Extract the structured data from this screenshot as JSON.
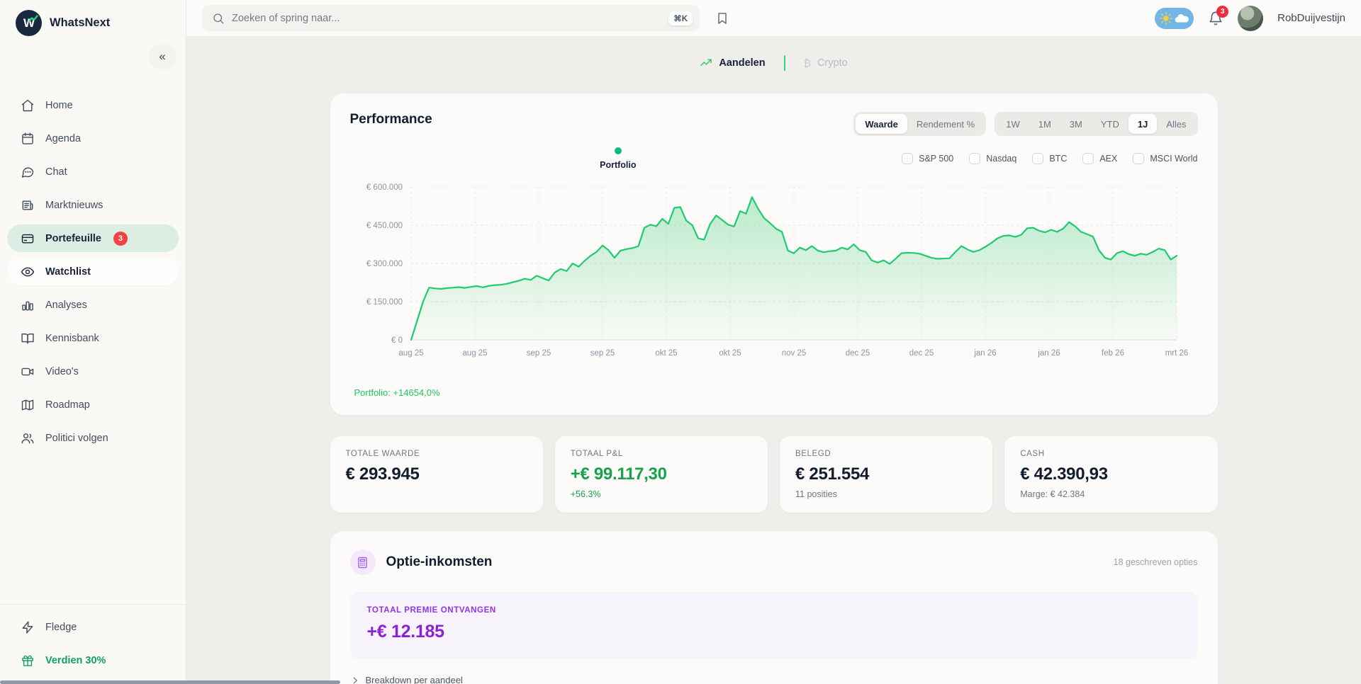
{
  "brand": {
    "name": "WhatsNext",
    "logo_letter": "W"
  },
  "topbar": {
    "search_placeholder": "Zoeken of spring naar...",
    "search_shortcut": "⌘K",
    "notification_count": "3",
    "user_name": "RobDuijvestijn"
  },
  "sidebar": {
    "items": [
      {
        "label": "Home"
      },
      {
        "label": "Agenda"
      },
      {
        "label": "Chat"
      },
      {
        "label": "Marktnieuws"
      },
      {
        "label": "Portefeuille",
        "badge": "3"
      },
      {
        "label": "Watchlist"
      },
      {
        "label": "Analyses"
      },
      {
        "label": "Kennisbank"
      },
      {
        "label": "Video's"
      },
      {
        "label": "Roadmap"
      },
      {
        "label": "Politici volgen"
      }
    ],
    "footer_items": [
      {
        "label": "Fledge"
      },
      {
        "label": "Verdien 30%"
      }
    ]
  },
  "tabs": {
    "stocks": "Aandelen",
    "crypto": "Crypto"
  },
  "performance": {
    "title": "Performance",
    "view_toggle": [
      "Waarde",
      "Rendement %"
    ],
    "view_active": "Waarde",
    "ranges": [
      "1W",
      "1M",
      "3M",
      "YTD",
      "1J",
      "Alles"
    ],
    "range_active": "1J",
    "legend": [
      "Portfolio",
      "S&P 500",
      "Nasdaq",
      "BTC",
      "AEX",
      "MSCI World"
    ],
    "footer": "Portfolio: +14654,0%"
  },
  "chart_data": {
    "type": "area",
    "title": "Performance",
    "xlabel": "",
    "ylabel": "",
    "ylim": [
      0,
      600000
    ],
    "grid": true,
    "line_color": "#1fcb6e",
    "x_labels": [
      "aug 25",
      "aug 25",
      "sep 25",
      "sep 25",
      "okt 25",
      "okt 25",
      "nov 25",
      "dec 25",
      "dec 25",
      "jan 26",
      "jan 26",
      "feb 26",
      "mrt 26"
    ],
    "y_ticks": [
      0,
      150000,
      300000,
      450000,
      600000
    ],
    "y_tick_labels": [
      "€ 0",
      "€ 150.000",
      "€ 300.000",
      "€ 450.000",
      "€ 600.000"
    ],
    "series": [
      {
        "name": "Portfolio",
        "values": [
          0,
          75000,
          150000,
          205000,
          202000,
          200000,
          203000,
          205000,
          207000,
          204000,
          208000,
          211000,
          206000,
          212000,
          215000,
          216000,
          220000,
          226000,
          232000,
          240000,
          235000,
          252000,
          242000,
          233000,
          264000,
          278000,
          270000,
          300000,
          287000,
          310000,
          330000,
          345000,
          370000,
          352000,
          322000,
          350000,
          356000,
          360000,
          368000,
          440000,
          452000,
          446000,
          475000,
          455000,
          518000,
          521000,
          468000,
          450000,
          398000,
          393000,
          455000,
          488000,
          470000,
          452000,
          445000,
          505000,
          495000,
          560000,
          515000,
          478000,
          458000,
          436000,
          424000,
          350000,
          340000,
          362000,
          352000,
          368000,
          350000,
          344000,
          348000,
          350000,
          362000,
          355000,
          375000,
          352000,
          345000,
          312000,
          303000,
          312000,
          298000,
          318000,
          340000,
          342000,
          341000,
          338000,
          330000,
          322000,
          318000,
          319000,
          320000,
          345000,
          368000,
          355000,
          345000,
          352000,
          365000,
          380000,
          398000,
          408000,
          410000,
          404000,
          412000,
          438000,
          440000,
          428000,
          422000,
          432000,
          424000,
          436000,
          462000,
          446000,
          424000,
          415000,
          405000,
          352000,
          322000,
          315000,
          340000,
          348000,
          336000,
          330000,
          338000,
          334000,
          345000,
          358000,
          352000,
          315000,
          330000
        ]
      }
    ]
  },
  "stats": [
    {
      "label": "TOTALE WAARDE",
      "value": "€ 293.945"
    },
    {
      "label": "TOTAAL P&L",
      "value": "+€ 99.117,30",
      "sub": "+56.3%"
    },
    {
      "label": "BELEGD",
      "value": "€ 251.554",
      "sub": "11 posities"
    },
    {
      "label": "CASH",
      "value": "€ 42.390,93",
      "sub": "Marge: € 42.384"
    }
  ],
  "options_income": {
    "title": "Optie-inkomsten",
    "meta": "18 geschreven opties",
    "premium_label": "TOTAAL PREMIE ONTVANGEN",
    "premium_value": "+€ 12.185",
    "breakdown_label": "Breakdown per aandeel"
  },
  "colors": {
    "accent_green": "#1fcb6e",
    "badge_red": "#ef4444",
    "purple": "#9333ea",
    "positive_green": "#16a34a"
  }
}
